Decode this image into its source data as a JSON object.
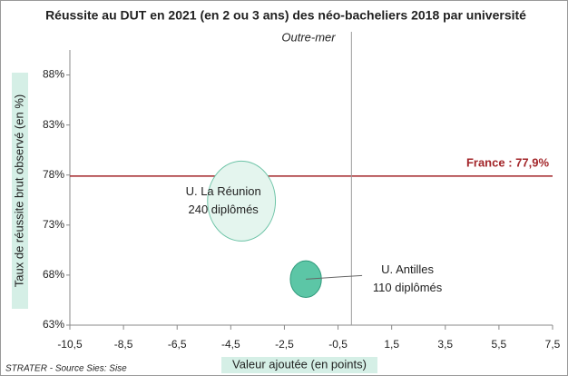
{
  "chart_data": {
    "type": "bubble",
    "title": "Réussite au DUT en 2021 (en 2 ou 3 ans) des néo-bacheliers 2018 par université",
    "subtitle": "Outre-mer",
    "x_label": "Valeur ajoutée (en points)",
    "y_label": "Taux de réussite brut observé (en %)",
    "source": "STRATER - Source Sies: Sise",
    "xlim": [
      -10.5,
      7.5
    ],
    "ylim": [
      63,
      90.5
    ],
    "xticks": [
      {
        "value": -10.5,
        "label": "-10,5"
      },
      {
        "value": -8.5,
        "label": "-8,5"
      },
      {
        "value": -6.5,
        "label": "-6,5"
      },
      {
        "value": -4.5,
        "label": "-4,5"
      },
      {
        "value": -2.5,
        "label": "-2,5"
      },
      {
        "value": -0.5,
        "label": "-0,5"
      },
      {
        "value": 1.5,
        "label": "1,5"
      },
      {
        "value": 3.5,
        "label": "3,5"
      },
      {
        "value": 5.5,
        "label": "5,5"
      },
      {
        "value": 7.5,
        "label": "7,5"
      }
    ],
    "yticks": [
      {
        "value": 63,
        "label": "63%"
      },
      {
        "value": 68,
        "label": "68%"
      },
      {
        "value": 73,
        "label": "73%"
      },
      {
        "value": 78,
        "label": "78%"
      },
      {
        "value": 83,
        "label": "83%"
      },
      {
        "value": 88,
        "label": "88%"
      }
    ],
    "points": [
      {
        "name": "U. La Réunion",
        "x": -4.1,
        "y": 75.4,
        "size": 240,
        "size_label": "240 diplômés",
        "color": "#e4f5ee",
        "stroke": "#6cc3a6"
      },
      {
        "name": "U. Antilles",
        "x": -1.7,
        "y": 67.6,
        "size": 110,
        "size_label": "110 diplômés",
        "color": "#5cc6a6",
        "stroke": "#2f9a7b"
      }
    ],
    "reference_lines": [
      {
        "axis": "y",
        "value": 77.9,
        "label": "France : 77,9%",
        "color": "#a3262a"
      },
      {
        "axis": "x",
        "value": 0,
        "color": "#9a9a9a"
      }
    ]
  }
}
